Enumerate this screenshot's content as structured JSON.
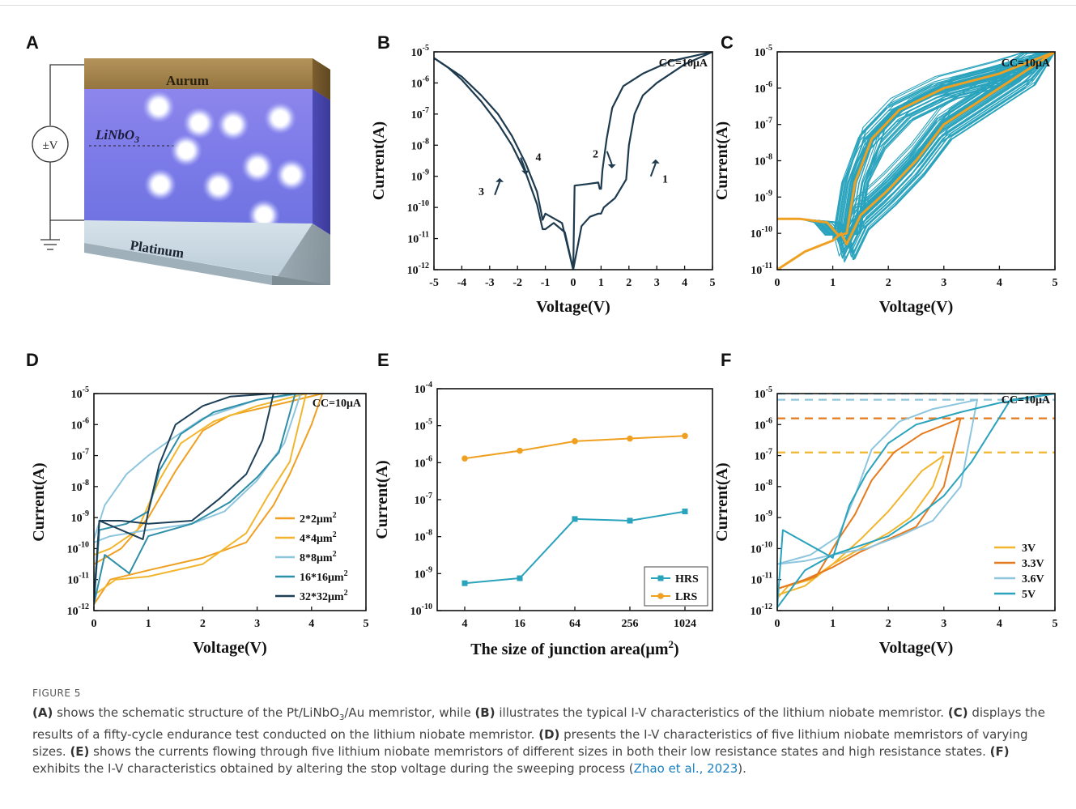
{
  "figure_label": "FIGURE 5",
  "caption": [
    {
      "b": "(A)",
      "t": " shows the schematic structure of the Pt/LiNbO"
    },
    {
      "sub": "3"
    },
    {
      "t": "/Au memristor, while "
    },
    {
      "b": "(B)",
      "t": " illustrates the typical I-V characteristics of the lithium niobate memristor. "
    },
    {
      "b": "(C)",
      "t": " displays the results of a fifty-cycle endurance test conducted on the lithium niobate memristor. "
    },
    {
      "b": "(D)",
      "t": " presents the I-V characteristics of five lithium niobate memristors of varying sizes. "
    },
    {
      "b": "(E)",
      "t": " shows the currents flowing through five lithium niobate memristors of different sizes in both their low resistance states and high resistance states. "
    },
    {
      "b": "(F)",
      "t": " exhibits the I-V characteristics obtained by altering the stop voltage during the sweeping process ("
    },
    {
      "cite": "Zhao et al., 2023"
    },
    {
      "t": ")."
    }
  ],
  "panel_A": {
    "label": "A",
    "top_layer": "Aurum",
    "middle_layer": "LiNbO",
    "middle_sub": "3",
    "bottom_layer": "Platinum",
    "source": "±V"
  },
  "chart_data": [
    {
      "panel": "B",
      "type": "line",
      "annotation": "CC=10μA",
      "xlabel": "Voltage(V)",
      "ylabel": "Current(A)",
      "xlim": [
        -5,
        5
      ],
      "xticks": [
        -5,
        -4,
        -3,
        -2,
        -1,
        0,
        1,
        2,
        3,
        4,
        5
      ],
      "ylog_range": [
        -12,
        -5
      ],
      "yscale": "log",
      "arrows": [
        "1",
        "2",
        "3",
        "4"
      ],
      "series": [
        {
          "color": "#1e3a4e",
          "x": [
            0,
            0.3,
            0.6,
            0.9,
            1.0,
            1.1,
            1.5,
            1.9,
            2.0,
            2.2,
            2.5,
            3,
            3.5,
            4,
            4.5,
            5
          ],
          "y": [
            -12,
            -10.6,
            -10.3,
            -10.2,
            -10.2,
            -10.0,
            -9.7,
            -9.1,
            -8.0,
            -7.0,
            -6.4,
            -6.0,
            -5.7,
            -5.4,
            -5.2,
            -5.0
          ]
        },
        {
          "color": "#1e3a4e",
          "x": [
            5,
            4.5,
            3.5,
            2.5,
            1.8,
            1.4,
            1.2,
            1.05,
            1.0,
            0.95,
            0.9,
            0.5,
            0.05,
            0
          ],
          "y": [
            -5.0,
            -5.1,
            -5.3,
            -5.7,
            -6.1,
            -6.8,
            -7.8,
            -8.8,
            -9.4,
            -9.4,
            -9.2,
            -9.25,
            -9.3,
            -12
          ]
        },
        {
          "color": "#1e3a4e",
          "x": [
            0,
            -0.4,
            -0.8,
            -1.0,
            -1.1,
            -1.3,
            -1.7,
            -2.2,
            -2.7,
            -3.3,
            -4,
            -4.5,
            -5
          ],
          "y": [
            -12,
            -10.5,
            -10.3,
            -10.2,
            -10.4,
            -9.5,
            -8.6,
            -7.7,
            -7.0,
            -6.4,
            -5.8,
            -5.5,
            -5.2
          ]
        },
        {
          "color": "#1e3a4e",
          "x": [
            -5,
            -4.5,
            -4,
            -3.3,
            -2.7,
            -2.2,
            -1.7,
            -1.3,
            -1.1,
            -1.0,
            -0.7,
            -0.3,
            0
          ],
          "y": [
            -5.2,
            -5.5,
            -5.9,
            -6.6,
            -7.3,
            -8.0,
            -8.9,
            -9.9,
            -10.7,
            -10.7,
            -10.5,
            -10.8,
            -12
          ]
        }
      ]
    },
    {
      "panel": "C",
      "type": "line",
      "annotation": "CC=10μA",
      "xlabel": "Voltage(V)",
      "ylabel": "Current(A)",
      "xlim": [
        0,
        5
      ],
      "xticks": [
        0,
        1,
        2,
        3,
        4,
        5
      ],
      "ylog_range": [
        -11,
        -5
      ],
      "yscale": "log",
      "cycles": 50,
      "cycle_color": "#2aa3bd",
      "highlight_color": "#f0a020",
      "highlight": [
        {
          "x": [
            0,
            0.5,
            1.0,
            1.15,
            1.25,
            1.5,
            2.0,
            2.5,
            3,
            3.5,
            4,
            4.5,
            5
          ],
          "y": [
            -11,
            -10.5,
            -10.2,
            -10.0,
            -10.3,
            -9.5,
            -8.8,
            -8.0,
            -7.0,
            -6.5,
            -6.0,
            -5.5,
            -5.0
          ]
        },
        {
          "x": [
            5,
            4.5,
            4,
            3,
            2.2,
            1.7,
            1.4,
            1.25,
            1.1,
            0.9,
            0.4,
            0
          ],
          "y": [
            -5.0,
            -5.3,
            -5.6,
            -6.0,
            -6.6,
            -7.4,
            -8.6,
            -10.0,
            -10.05,
            -9.7,
            -9.6,
            -9.6
          ]
        }
      ]
    },
    {
      "panel": "D",
      "type": "line",
      "annotation": "CC=10μA",
      "xlabel": "Voltage(V)",
      "ylabel": "Current(A)",
      "xlim": [
        0,
        5
      ],
      "xticks": [
        0,
        1,
        2,
        3,
        4,
        5
      ],
      "ylog_range": [
        -12,
        -5
      ],
      "yscale": "log",
      "legend": "right",
      "series": [
        {
          "name": "2*2μm2",
          "color": "#f0a020",
          "x": [
            0,
            0.3,
            1,
            2,
            2.8,
            3.3,
            3.6,
            4.0,
            4.2,
            5
          ],
          "y": [
            -11.8,
            -11.0,
            -10.7,
            -10.3,
            -9.8,
            -8.6,
            -7.6,
            -6.0,
            -5.0,
            -5.0
          ],
          "x2": [
            4.2,
            3.5,
            2.5,
            2.0,
            1.5,
            1.0,
            0.5,
            0
          ],
          "y2": [
            -5.0,
            -5.3,
            -5.7,
            -6.2,
            -7.5,
            -9.0,
            -10.0,
            -10.5
          ]
        },
        {
          "name": "4*4μm2",
          "color": "#f2b62e",
          "x": [
            0,
            0.4,
            1,
            2,
            2.8,
            3.2,
            3.6,
            3.9,
            5
          ],
          "y": [
            -11.5,
            -11.0,
            -10.9,
            -10.5,
            -9.5,
            -8.3,
            -7.2,
            -5.0,
            -5.0
          ],
          "x2": [
            3.9,
            3.0,
            2.2,
            1.6,
            1.2,
            0.8,
            0.3,
            0
          ],
          "y2": [
            -5.0,
            -5.4,
            -5.9,
            -6.6,
            -7.8,
            -9.4,
            -10.0,
            -10.2
          ]
        },
        {
          "name": "8*8μm2",
          "color": "#8ec6de",
          "x": [
            0,
            0.3,
            1,
            1.8,
            2.4,
            3.0,
            3.5,
            3.8,
            5
          ],
          "y": [
            -9.8,
            -9.6,
            -9.4,
            -9.2,
            -8.8,
            -7.8,
            -6.6,
            -5.0,
            -5.0
          ],
          "x2": [
            3.8,
            3.0,
            2.0,
            1.4,
            1.0,
            0.6,
            0.2,
            0
          ],
          "y2": [
            -5.0,
            -5.2,
            -5.8,
            -6.5,
            -7.0,
            -7.6,
            -8.6,
            -9.7
          ]
        },
        {
          "name": "16*16μm2",
          "color": "#2f8ea8",
          "x": [
            0,
            0.2,
            0.65,
            1,
            1.8,
            2.5,
            3.0,
            3.4,
            3.7,
            5
          ],
          "y": [
            -11.8,
            -10.2,
            -10.8,
            -9.6,
            -9.2,
            -8.5,
            -7.7,
            -6.9,
            -5.0,
            -5.0
          ],
          "x2": [
            3.7,
            3.0,
            2.2,
            1.6,
            1.2,
            1.0,
            0.6,
            0.1,
            0
          ],
          "y2": [
            -5.0,
            -5.2,
            -5.6,
            -6.3,
            -7.5,
            -8.8,
            -9.2,
            -9.4,
            -11.8
          ]
        },
        {
          "name": "32*32μm2",
          "color": "#1d3f58",
          "x": [
            0,
            0.1,
            0.5,
            1,
            1.8,
            2.3,
            2.8,
            3.1,
            3.3,
            5
          ],
          "y": [
            -11.7,
            -9.1,
            -9.1,
            -9.2,
            -9.1,
            -8.4,
            -7.6,
            -6.5,
            -5.0,
            -5.0
          ],
          "x2": [
            3.3,
            2.5,
            2.0,
            1.5,
            1.2,
            1.0,
            0.9,
            0.1,
            0
          ],
          "y2": [
            -5.0,
            -5.1,
            -5.4,
            -6.0,
            -7.3,
            -8.8,
            -9.7,
            -9.1,
            -11.7
          ]
        }
      ]
    },
    {
      "panel": "E",
      "type": "line",
      "xlabel": "The size of junction area(μm",
      "xlabel_sup": "2",
      "ylabel": "Current(A)",
      "categories": [
        "4",
        "16",
        "64",
        "256",
        "1024"
      ],
      "ylog_range": [
        -10,
        -4
      ],
      "yscale": "log",
      "legend": "bottom-right",
      "series": [
        {
          "name": "HRS",
          "color": "#2aa3bd",
          "marker": "square",
          "values": [
            5.5e-10,
            7.5e-10,
            3e-08,
            2.7e-08,
            4.8e-08
          ]
        },
        {
          "name": "LRS",
          "color": "#f0a020",
          "marker": "circle",
          "values": [
            1.3e-06,
            2.1e-06,
            3.8e-06,
            4.5e-06,
            5.3e-06
          ]
        }
      ]
    },
    {
      "panel": "F",
      "type": "line",
      "annotation": "CC=10μA",
      "xlabel": "Voltage(V)",
      "ylabel": "Current(A)",
      "xlim": [
        0,
        5
      ],
      "xticks": [
        0,
        1,
        2,
        3,
        4,
        5
      ],
      "ylog_range": [
        -12,
        -5
      ],
      "yscale": "log",
      "legend": "bottom-right",
      "dashed_levels": [
        {
          "color": "#2aa3bd",
          "y": -5.0
        },
        {
          "color": "#8ec6de",
          "y": -5.2
        },
        {
          "color": "#e67a1e",
          "y": -5.8
        },
        {
          "color": "#f2b62e",
          "y": -6.9
        }
      ],
      "series": [
        {
          "name": "3V",
          "color": "#f2b62e",
          "x": [
            0,
            0.5,
            1,
            1.5,
            2,
            2.4,
            2.8,
            3.0
          ],
          "y": [
            -11.5,
            -11.2,
            -10.5,
            -10.0,
            -9.5,
            -9.0,
            -8.0,
            -7.0
          ],
          "x2": [
            3.0,
            2.6,
            2.0,
            1.5,
            1.0,
            0.6,
            0.2,
            0
          ],
          "y2": [
            -7.0,
            -7.5,
            -8.8,
            -9.7,
            -10.5,
            -11.0,
            -11.2,
            -11.6
          ]
        },
        {
          "name": "3.3V",
          "color": "#e67a1e",
          "x": [
            0,
            0.5,
            1,
            1.5,
            2,
            2.5,
            3.0,
            3.3
          ],
          "y": [
            -11.3,
            -11.0,
            -10.6,
            -10.1,
            -9.7,
            -9.3,
            -8.0,
            -5.8
          ],
          "x2": [
            3.3,
            2.6,
            2.1,
            1.7,
            1.4,
            1.1,
            0.7,
            0
          ],
          "y2": [
            -5.8,
            -6.3,
            -6.9,
            -7.8,
            -8.9,
            -9.7,
            -10.9,
            -11.3
          ]
        },
        {
          "name": "3.6V",
          "color": "#8ec6de",
          "x": [
            0,
            0.5,
            1,
            1.6,
            2.2,
            2.8,
            3.3,
            3.6
          ],
          "y": [
            -10.5,
            -10.4,
            -10.2,
            -10.0,
            -9.6,
            -9.1,
            -8.0,
            -5.2
          ],
          "x2": [
            3.6,
            2.8,
            2.2,
            1.7,
            1.4,
            1.1,
            0.6,
            0
          ],
          "y2": [
            -5.2,
            -5.5,
            -5.9,
            -6.8,
            -8.3,
            -9.6,
            -10.2,
            -10.5
          ]
        },
        {
          "name": "5V",
          "color": "#2aa3bd",
          "x": [
            0,
            0.5,
            1,
            1.5,
            2,
            2.5,
            3.0,
            3.5,
            4.2,
            5
          ],
          "y": [
            -11.9,
            -10.7,
            -10.2,
            -9.9,
            -9.6,
            -9.0,
            -8.3,
            -7.2,
            -5.2,
            -5.0
          ],
          "x2": [
            5,
            4,
            3.3,
            2.5,
            2.0,
            1.6,
            1.3,
            1.0,
            0.1,
            0
          ],
          "y2": [
            -5.0,
            -5.3,
            -5.6,
            -6.0,
            -6.6,
            -7.6,
            -8.6,
            -10.3,
            -9.4,
            -11.9
          ]
        }
      ]
    }
  ]
}
